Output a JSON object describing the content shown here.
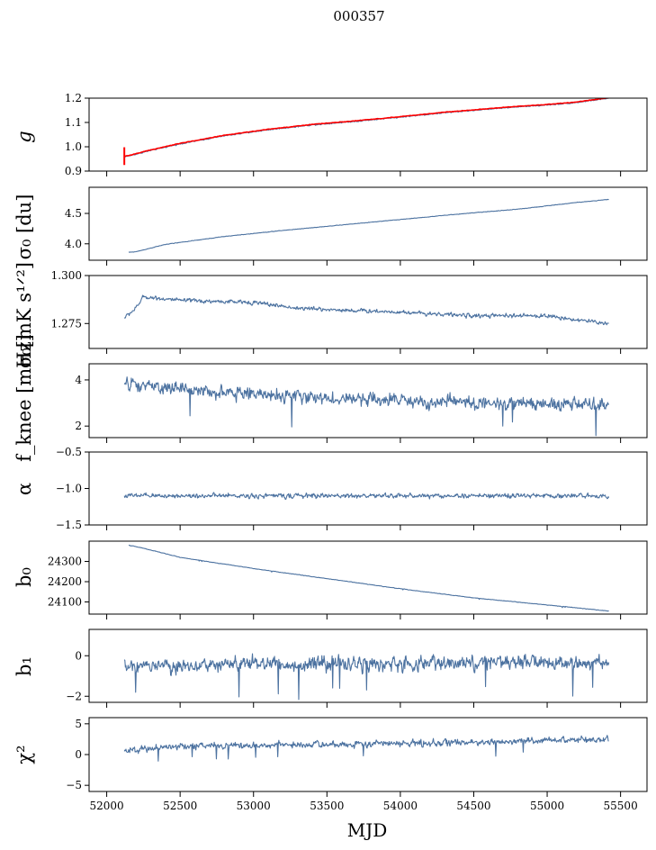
{
  "title": "000357",
  "xlabel": "MJD",
  "colors": {
    "series": "#4c72a0",
    "overlay": "#ff0000"
  },
  "chart_data": [
    {
      "type": "line",
      "ylabel": "$g$",
      "ylabel_text": "g",
      "ylim": [
        0.9,
        1.2
      ],
      "yticks": [
        "0.9",
        "1.0",
        "1.1",
        "1.2"
      ],
      "ytick_values": [
        0.9,
        1.0,
        1.1,
        1.2
      ],
      "xlim": [
        51880,
        55680
      ],
      "x_range": [
        52120,
        55420
      ],
      "trend": [
        [
          52120,
          0.96
        ],
        [
          52150,
          0.962
        ],
        [
          52300,
          0.985
        ],
        [
          52500,
          1.012
        ],
        [
          52800,
          1.045
        ],
        [
          53100,
          1.07
        ],
        [
          53400,
          1.09
        ],
        [
          53700,
          1.105
        ],
        [
          54000,
          1.122
        ],
        [
          54300,
          1.14
        ],
        [
          54700,
          1.16
        ],
        [
          55000,
          1.172
        ],
        [
          55200,
          1.182
        ],
        [
          55420,
          1.2
        ]
      ],
      "noise": 0.003,
      "overlay": {
        "name": "",
        "values_offset": 0.002,
        "spike_at": 52120,
        "spike_range": [
          0.925,
          0.998
        ]
      }
    },
    {
      "type": "line",
      "ylabel_text": "σ₀ [du]",
      "ylim": [
        3.73,
        4.93
      ],
      "yticks": [
        "4.0",
        "4.5"
      ],
      "ytick_values": [
        4.0,
        4.5
      ],
      "xlim": [
        51880,
        55680
      ],
      "x_range": [
        52150,
        55420
      ],
      "trend": [
        [
          52150,
          3.86
        ],
        [
          52200,
          3.87
        ],
        [
          52400,
          3.99
        ],
        [
          52800,
          4.12
        ],
        [
          53200,
          4.22
        ],
        [
          53600,
          4.31
        ],
        [
          54000,
          4.4
        ],
        [
          54400,
          4.49
        ],
        [
          54800,
          4.57
        ],
        [
          55200,
          4.68
        ],
        [
          55420,
          4.73
        ]
      ],
      "noise": 0.005
    },
    {
      "type": "line",
      "ylabel_text": "σ₀[mK s¹ᐟ²]",
      "ylim": [
        1.262,
        1.3
      ],
      "yticks": [
        "1.275",
        "1.300"
      ],
      "ytick_values": [
        1.275,
        1.3
      ],
      "xlim": [
        51880,
        55680
      ],
      "x_range": [
        52120,
        55420
      ],
      "trend": [
        [
          52120,
          1.278
        ],
        [
          52200,
          1.283
        ],
        [
          52250,
          1.289
        ],
        [
          52500,
          1.287
        ],
        [
          53000,
          1.286
        ],
        [
          53300,
          1.283
        ],
        [
          53600,
          1.282
        ],
        [
          54000,
          1.281
        ],
        [
          54500,
          1.279
        ],
        [
          55000,
          1.279
        ],
        [
          55300,
          1.276
        ],
        [
          55420,
          1.275
        ]
      ],
      "noise": 0.0013
    },
    {
      "type": "line",
      "ylabel_text": "f_knee [mHz]",
      "ylim": [
        1.5,
        4.7
      ],
      "yticks": [
        "2",
        "4"
      ],
      "ytick_values": [
        2,
        4
      ],
      "xlim": [
        51880,
        55680
      ],
      "x_range": [
        52120,
        55420
      ],
      "trend": [
        [
          52120,
          3.8
        ],
        [
          52500,
          3.6
        ],
        [
          53000,
          3.4
        ],
        [
          53500,
          3.2
        ],
        [
          54000,
          3.1
        ],
        [
          54500,
          3.0
        ],
        [
          55000,
          2.95
        ],
        [
          55420,
          2.9
        ]
      ],
      "noise": 0.35
    },
    {
      "type": "line",
      "ylabel_text": "α",
      "ylim": [
        -1.5,
        -0.5
      ],
      "yticks": [
        "−1.5",
        "−1.0",
        "−0.5"
      ],
      "ytick_values": [
        -1.5,
        -1.0,
        -0.5
      ],
      "xlim": [
        51880,
        55680
      ],
      "x_range": [
        52120,
        55420
      ],
      "trend": [
        [
          52120,
          -1.1
        ],
        [
          55420,
          -1.1
        ]
      ],
      "noise": 0.04
    },
    {
      "type": "line",
      "ylabel_text": "b₀",
      "ylim": [
        24040,
        24400
      ],
      "yticks": [
        "24100",
        "24200",
        "24300"
      ],
      "ytick_values": [
        24100,
        24200,
        24300
      ],
      "xlim": [
        51880,
        55680
      ],
      "x_range": [
        52150,
        55420
      ],
      "trend": [
        [
          52150,
          24380
        ],
        [
          52250,
          24365
        ],
        [
          52500,
          24320
        ],
        [
          53000,
          24265
        ],
        [
          53500,
          24215
        ],
        [
          54000,
          24165
        ],
        [
          54500,
          24120
        ],
        [
          55000,
          24085
        ],
        [
          55420,
          24055
        ]
      ],
      "noise": 1.5
    },
    {
      "type": "line",
      "ylabel_text": "b₁",
      "ylim": [
        -2.3,
        1.3
      ],
      "yticks": [
        "−2",
        "0"
      ],
      "ytick_values": [
        -2,
        0
      ],
      "xlim": [
        51880,
        55680
      ],
      "x_range": [
        52120,
        55420
      ],
      "trend": [
        [
          52120,
          -0.5
        ],
        [
          55420,
          -0.3
        ]
      ],
      "noise": 0.45
    },
    {
      "type": "line",
      "ylabel_text": "χ²",
      "ylim": [
        -6,
        6
      ],
      "yticks": [
        "−5",
        "0",
        "5"
      ],
      "ytick_values": [
        -5,
        0,
        5
      ],
      "xlim": [
        51880,
        55680
      ],
      "x_range": [
        52120,
        55420
      ],
      "trend": [
        [
          52120,
          0.6
        ],
        [
          52500,
          1.4
        ],
        [
          53500,
          1.6
        ],
        [
          54500,
          2.0
        ],
        [
          55420,
          2.5
        ]
      ],
      "noise": 0.65,
      "xticks": [
        "52000",
        "52500",
        "53000",
        "53500",
        "54000",
        "54500",
        "55000",
        "55500"
      ],
      "xtick_values": [
        52000,
        52500,
        53000,
        53500,
        54000,
        54500,
        55000,
        55500
      ]
    }
  ]
}
